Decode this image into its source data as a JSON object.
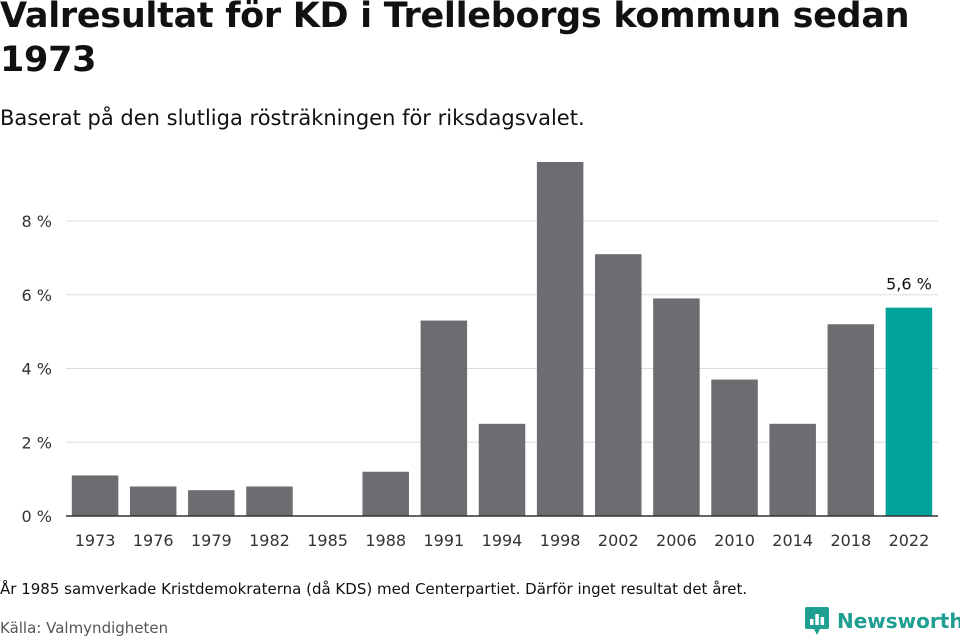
{
  "title": "Valresultat för KD i Trelleborgs kommun sedan 1973",
  "subtitle": "Baserat på den slutliga rösträkningen för riksdagsvalet.",
  "footnote": "År 1985 samverkade Kristdemokraterna (då KDS) med Centerpartiet. Därför inget resultat det året.",
  "source": "Källa: Valmyndigheten",
  "brand": {
    "name": "Newsworthy",
    "icon": "newsworthy-logo-icon"
  },
  "colors": {
    "bar": "#6d6c71",
    "highlight": "#00a39a",
    "grid": "#dddddd",
    "axis": "#333333"
  },
  "chart_data": {
    "type": "bar",
    "title": "Valresultat för KD i Trelleborgs kommun sedan 1973",
    "xlabel": "",
    "ylabel": "",
    "categories": [
      "1973",
      "1976",
      "1979",
      "1982",
      "1985",
      "1988",
      "1991",
      "1994",
      "1998",
      "2002",
      "2006",
      "2010",
      "2014",
      "2018",
      "2022"
    ],
    "values": [
      1.1,
      0.8,
      0.7,
      0.8,
      null,
      1.2,
      5.3,
      2.5,
      9.6,
      7.1,
      5.9,
      3.7,
      2.5,
      5.2,
      5.65
    ],
    "ylim": [
      0,
      9.6
    ],
    "yticks": [
      0,
      2,
      4,
      6,
      8
    ],
    "ytick_labels": [
      "0 %",
      "2 %",
      "4 %",
      "6 %",
      "8 %"
    ],
    "highlight_index": 14,
    "data_labels": [
      {
        "index": 14,
        "text": "5,6 %"
      }
    ],
    "grid": true
  }
}
